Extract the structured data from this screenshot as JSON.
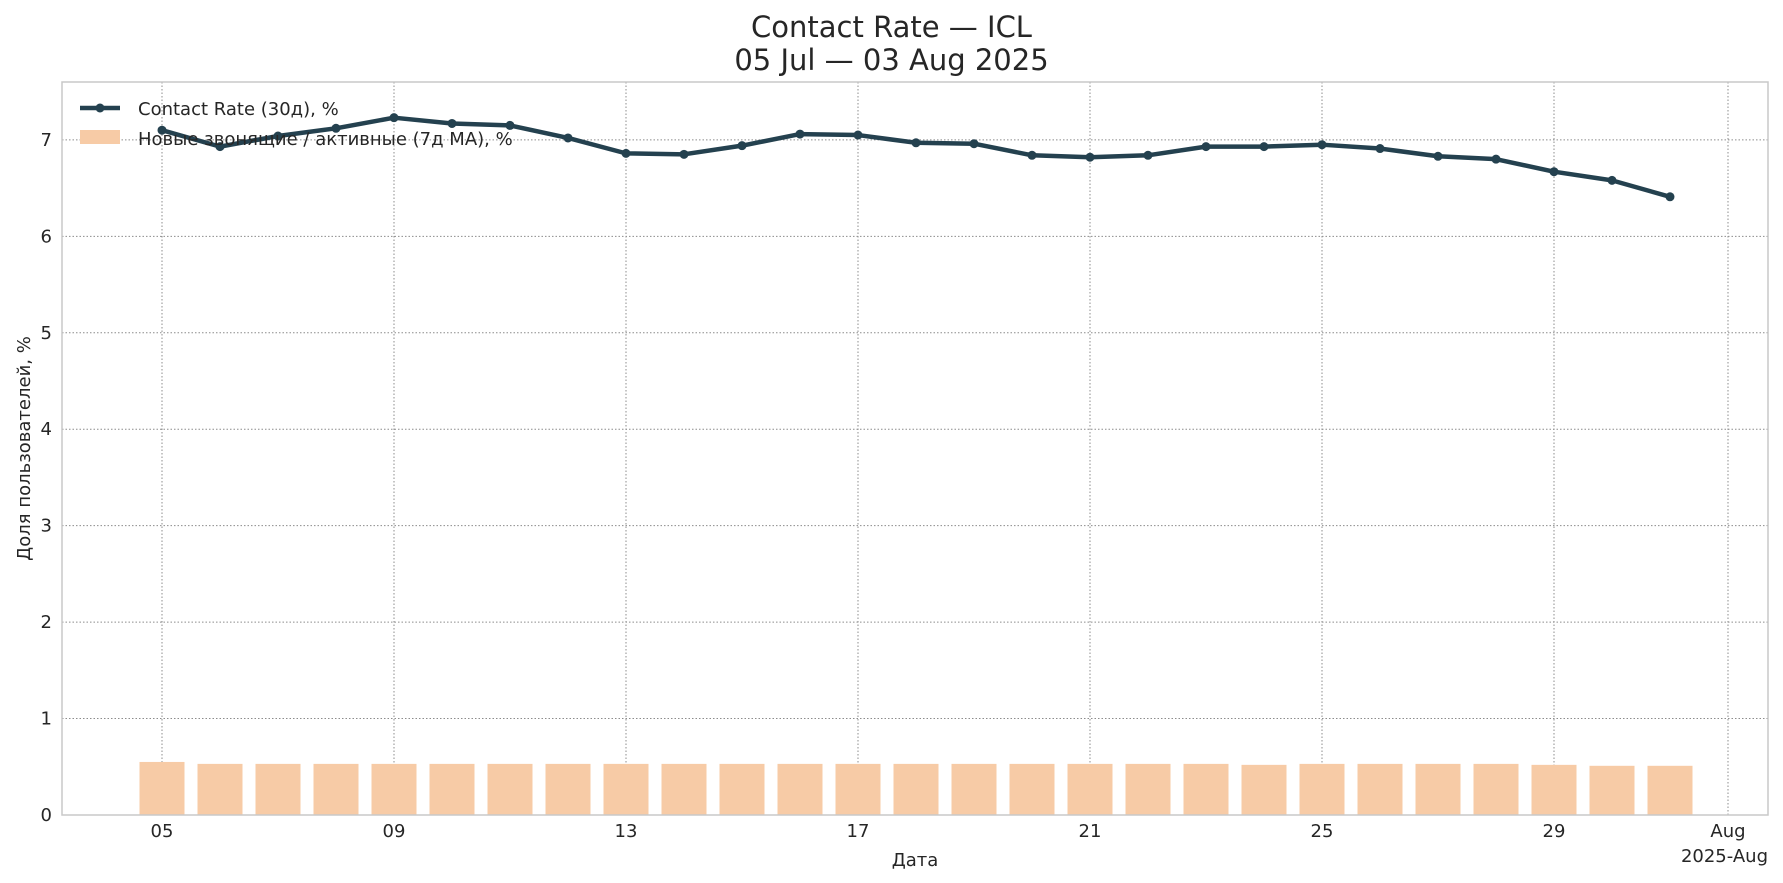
{
  "title": "Contact Rate — ICL",
  "subtitle": "05 Jul — 03 Aug 2025",
  "chart_data": {
    "type": "line+bar",
    "xlabel": "Дата",
    "ylabel": "Доля пользователей, %",
    "ylim": [
      0,
      7.6
    ],
    "y_ticks": [
      "0",
      "1",
      "2",
      "3",
      "4",
      "5",
      "6",
      "7"
    ],
    "x_ticks": [
      "05",
      "09",
      "13",
      "17",
      "21",
      "25",
      "29",
      "Aug"
    ],
    "x_offset_label": "2025-Aug",
    "x": [
      "2025-07-05",
      "2025-07-06",
      "2025-07-07",
      "2025-07-08",
      "2025-07-09",
      "2025-07-10",
      "2025-07-11",
      "2025-07-12",
      "2025-07-13",
      "2025-07-14",
      "2025-07-15",
      "2025-07-16",
      "2025-07-17",
      "2025-07-18",
      "2025-07-19",
      "2025-07-20",
      "2025-07-21",
      "2025-07-22",
      "2025-07-23",
      "2025-07-24",
      "2025-07-25",
      "2025-07-26",
      "2025-07-27",
      "2025-07-28",
      "2025-07-29",
      "2025-07-30",
      "2025-07-31"
    ],
    "series": [
      {
        "name": "Contact Rate (30д), %",
        "type": "line",
        "color": "#24414f",
        "values": [
          7.1,
          6.93,
          7.04,
          7.12,
          7.23,
          7.17,
          7.15,
          7.02,
          6.86,
          6.85,
          6.94,
          7.06,
          7.05,
          6.97,
          6.96,
          6.84,
          6.82,
          6.84,
          6.93,
          6.93,
          6.95,
          6.91,
          6.83,
          6.8,
          6.67,
          6.58,
          6.41
        ]
      },
      {
        "name": "Новые звонящие / активные (7д MA), %",
        "type": "bar",
        "color": "#f7cba6",
        "values": [
          0.55,
          0.53,
          0.53,
          0.53,
          0.53,
          0.53,
          0.53,
          0.53,
          0.53,
          0.53,
          0.53,
          0.53,
          0.53,
          0.53,
          0.53,
          0.53,
          0.53,
          0.53,
          0.53,
          0.52,
          0.53,
          0.53,
          0.53,
          0.53,
          0.52,
          0.51,
          0.51
        ]
      }
    ],
    "grid": true,
    "legend_position": "top-left"
  }
}
